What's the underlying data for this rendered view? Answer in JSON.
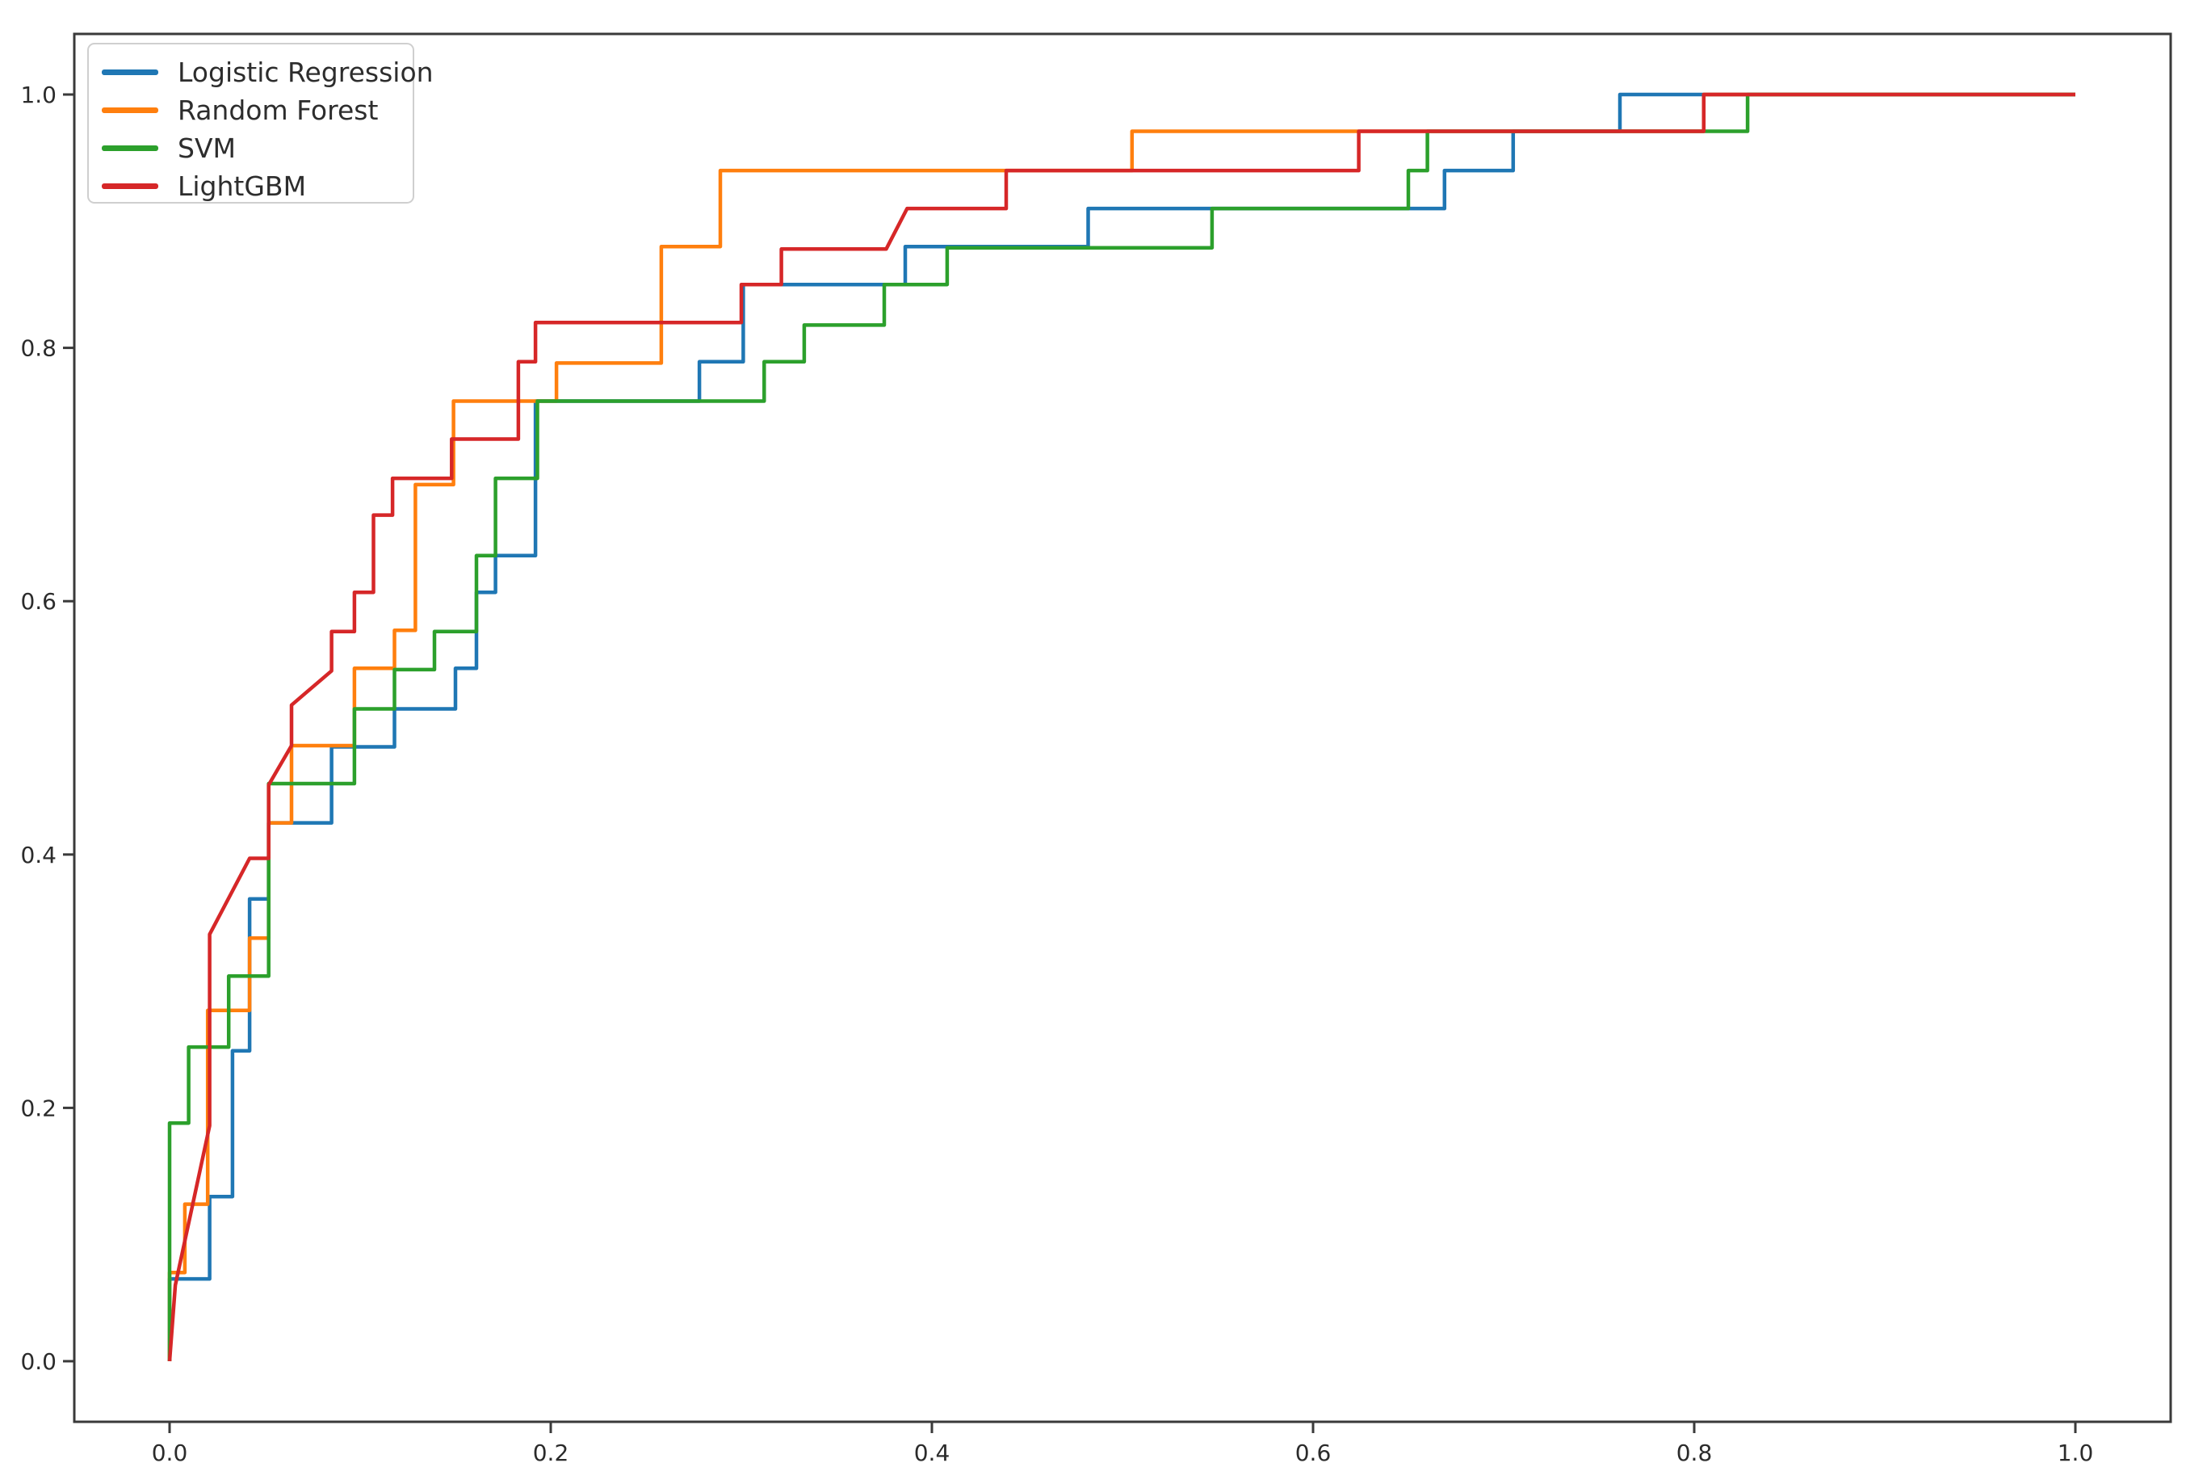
{
  "figure": {
    "background_color": "#ffffff",
    "spine_color": "#3a3a3a",
    "tick_label_color": "#2b2b2b"
  },
  "axes": {
    "x_tick_labels": [
      "0.0",
      "0.2",
      "0.4",
      "0.6",
      "0.8",
      "1.0"
    ],
    "y_tick_labels": [
      "0.0",
      "0.2",
      "0.4",
      "0.6",
      "0.8",
      "1.0"
    ],
    "x_tick_values": [
      0,
      0.2,
      0.4,
      0.6,
      0.8,
      1.0
    ],
    "y_tick_values": [
      0,
      0.2,
      0.4,
      0.6,
      0.8,
      1.0
    ]
  },
  "legend": {
    "position": "upper left",
    "items": [
      "Logistic Regression",
      "Random Forest",
      "SVM",
      "LightGBM"
    ]
  },
  "chart_data": {
    "type": "line",
    "subtype": "roc_step_curves",
    "title": "",
    "xlabel": "",
    "ylabel": "",
    "xlim": [
      -0.05,
      1.05
    ],
    "ylim": [
      -0.048,
      1.048
    ],
    "grid": false,
    "legend_position": "upper left",
    "series": [
      {
        "name": "Logistic Regression",
        "color": "#1f77b4",
        "points": [
          [
            0,
            0
          ],
          [
            0,
            0.065
          ],
          [
            0.021,
            0.065
          ],
          [
            0.021,
            0.13
          ],
          [
            0.033,
            0.13
          ],
          [
            0.033,
            0.245
          ],
          [
            0.042,
            0.245
          ],
          [
            0.042,
            0.365
          ],
          [
            0.052,
            0.365
          ],
          [
            0.052,
            0.425
          ],
          [
            0.085,
            0.425
          ],
          [
            0.085,
            0.485
          ],
          [
            0.118,
            0.485
          ],
          [
            0.118,
            0.515
          ],
          [
            0.15,
            0.515
          ],
          [
            0.15,
            0.547
          ],
          [
            0.161,
            0.547
          ],
          [
            0.161,
            0.607
          ],
          [
            0.171,
            0.607
          ],
          [
            0.171,
            0.636
          ],
          [
            0.192,
            0.636
          ],
          [
            0.192,
            0.758
          ],
          [
            0.278,
            0.758
          ],
          [
            0.278,
            0.789
          ],
          [
            0.301,
            0.789
          ],
          [
            0.301,
            0.85
          ],
          [
            0.386,
            0.85
          ],
          [
            0.386,
            0.88
          ],
          [
            0.482,
            0.88
          ],
          [
            0.482,
            0.91
          ],
          [
            0.669,
            0.91
          ],
          [
            0.669,
            0.94
          ],
          [
            0.705,
            0.94
          ],
          [
            0.705,
            0.971
          ],
          [
            0.761,
            0.971
          ],
          [
            0.761,
            1
          ],
          [
            1,
            1
          ]
        ]
      },
      {
        "name": "Random Forest",
        "color": "#ff7f0e",
        "points": [
          [
            0,
            0
          ],
          [
            0,
            0.07
          ],
          [
            0.008,
            0.07
          ],
          [
            0.008,
            0.124
          ],
          [
            0.02,
            0.124
          ],
          [
            0.02,
            0.277
          ],
          [
            0.042,
            0.277
          ],
          [
            0.042,
            0.334
          ],
          [
            0.052,
            0.334
          ],
          [
            0.052,
            0.425
          ],
          [
            0.064,
            0.425
          ],
          [
            0.064,
            0.486
          ],
          [
            0.097,
            0.486
          ],
          [
            0.097,
            0.547
          ],
          [
            0.118,
            0.547
          ],
          [
            0.118,
            0.577
          ],
          [
            0.129,
            0.577
          ],
          [
            0.129,
            0.692
          ],
          [
            0.149,
            0.692
          ],
          [
            0.149,
            0.758
          ],
          [
            0.203,
            0.758
          ],
          [
            0.203,
            0.788
          ],
          [
            0.258,
            0.788
          ],
          [
            0.258,
            0.88
          ],
          [
            0.289,
            0.88
          ],
          [
            0.289,
            0.94
          ],
          [
            0.505,
            0.94
          ],
          [
            0.505,
            0.971
          ],
          [
            0.805,
            0.971
          ],
          [
            0.805,
            1
          ],
          [
            1,
            1
          ]
        ]
      },
      {
        "name": "SVM",
        "color": "#2ca02c",
        "points": [
          [
            0,
            0
          ],
          [
            0,
            0.188
          ],
          [
            0.01,
            0.188
          ],
          [
            0.01,
            0.248
          ],
          [
            0.031,
            0.248
          ],
          [
            0.031,
            0.304
          ],
          [
            0.052,
            0.304
          ],
          [
            0.052,
            0.456
          ],
          [
            0.097,
            0.456
          ],
          [
            0.097,
            0.515
          ],
          [
            0.118,
            0.515
          ],
          [
            0.118,
            0.546
          ],
          [
            0.139,
            0.546
          ],
          [
            0.139,
            0.576
          ],
          [
            0.161,
            0.576
          ],
          [
            0.161,
            0.636
          ],
          [
            0.171,
            0.636
          ],
          [
            0.171,
            0.697
          ],
          [
            0.193,
            0.697
          ],
          [
            0.193,
            0.758
          ],
          [
            0.312,
            0.758
          ],
          [
            0.312,
            0.789
          ],
          [
            0.333,
            0.789
          ],
          [
            0.333,
            0.818
          ],
          [
            0.375,
            0.818
          ],
          [
            0.375,
            0.85
          ],
          [
            0.408,
            0.85
          ],
          [
            0.408,
            0.879
          ],
          [
            0.547,
            0.879
          ],
          [
            0.547,
            0.91
          ],
          [
            0.65,
            0.91
          ],
          [
            0.65,
            0.94
          ],
          [
            0.66,
            0.94
          ],
          [
            0.66,
            0.971
          ],
          [
            0.828,
            0.971
          ],
          [
            0.828,
            1
          ],
          [
            1,
            1
          ]
        ]
      },
      {
        "name": "LightGBM",
        "color": "#d62728",
        "points": [
          [
            0,
            0
          ],
          [
            0.003,
            0.06
          ],
          [
            0.021,
            0.186
          ],
          [
            0.021,
            0.337
          ],
          [
            0.042,
            0.397
          ],
          [
            0.052,
            0.397
          ],
          [
            0.052,
            0.455
          ],
          [
            0.064,
            0.486
          ],
          [
            0.064,
            0.518
          ],
          [
            0.085,
            0.545
          ],
          [
            0.085,
            0.576
          ],
          [
            0.097,
            0.576
          ],
          [
            0.097,
            0.607
          ],
          [
            0.107,
            0.607
          ],
          [
            0.107,
            0.668
          ],
          [
            0.117,
            0.668
          ],
          [
            0.117,
            0.697
          ],
          [
            0.148,
            0.697
          ],
          [
            0.148,
            0.728
          ],
          [
            0.183,
            0.728
          ],
          [
            0.183,
            0.789
          ],
          [
            0.192,
            0.789
          ],
          [
            0.192,
            0.82
          ],
          [
            0.3,
            0.82
          ],
          [
            0.3,
            0.85
          ],
          [
            0.321,
            0.85
          ],
          [
            0.321,
            0.878
          ],
          [
            0.376,
            0.878
          ],
          [
            0.387,
            0.91
          ],
          [
            0.439,
            0.91
          ],
          [
            0.439,
            0.94
          ],
          [
            0.624,
            0.94
          ],
          [
            0.624,
            0.971
          ],
          [
            0.805,
            0.971
          ],
          [
            0.805,
            1
          ],
          [
            1,
            1
          ]
        ]
      }
    ]
  }
}
